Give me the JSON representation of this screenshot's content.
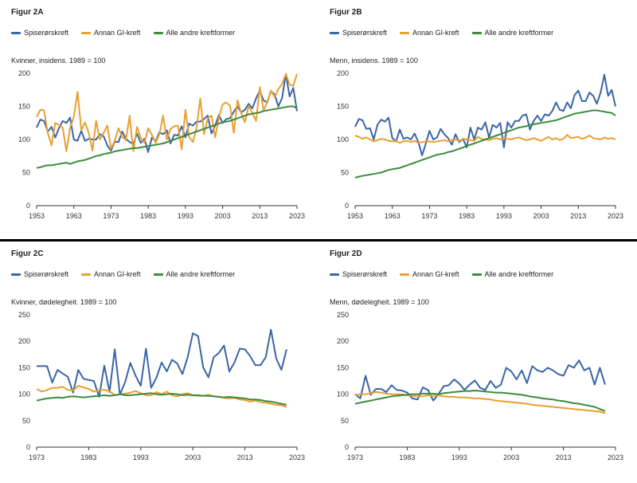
{
  "colors": {
    "spise": "#3a65a6",
    "annen": "#e8a030",
    "alle": "#3d8b3d"
  },
  "chart_data": [
    {
      "type": "line",
      "title": "Figur 2A",
      "subtitle": "Kvinner, insidens. 1989 = 100",
      "xlim": [
        1953,
        2023
      ],
      "ylim": [
        0,
        200
      ],
      "xticks": [
        1953,
        1963,
        1973,
        1983,
        1993,
        2003,
        2013,
        2023
      ],
      "yticks": [
        0,
        50,
        100,
        150,
        200
      ],
      "x_start": 1953,
      "series": [
        {
          "name": "Spiserørskreft",
          "key": "spise",
          "values": [
            118,
            130,
            128,
            112,
            119,
            103,
            117,
            128,
            125,
            133,
            100,
            98,
            113,
            98,
            101,
            100,
            100,
            108,
            105,
            91,
            83,
            97,
            96,
            112,
            101,
            96,
            93,
            109,
            95,
            101,
            81,
            103,
            97,
            111,
            108,
            114,
            94,
            107,
            106,
            120,
            103,
            124,
            121,
            127,
            127,
            131,
            136,
            109,
            121,
            137,
            125,
            131,
            132,
            142,
            150,
            141,
            145,
            154,
            147,
            162,
            174,
            159,
            156,
            173,
            168,
            150,
            163,
            199,
            165,
            178,
            143
          ]
        },
        {
          "name": "Annan GI-kreft",
          "key": "annen",
          "values": [
            134,
            145,
            144,
            110,
            91,
            125,
            122,
            118,
            82,
            118,
            134,
            172,
            114,
            126,
            110,
            83,
            128,
            100,
            110,
            121,
            86,
            98,
            117,
            104,
            99,
            136,
            82,
            119,
            103,
            95,
            117,
            107,
            95,
            108,
            136,
            100,
            116,
            120,
            121,
            85,
            145,
            104,
            96,
            118,
            162,
            108,
            132,
            136,
            103,
            133,
            153,
            156,
            151,
            110,
            159,
            140,
            126,
            151,
            140,
            128,
            179,
            144,
            157,
            174,
            164,
            176,
            184,
            199,
            183,
            181,
            199
          ]
        },
        {
          "name": "Alle andre kreftformer",
          "key": "alle",
          "values": [
            57,
            58,
            60,
            61,
            61,
            62,
            63,
            64,
            65,
            63,
            65,
            67,
            68,
            69,
            71,
            73,
            75,
            76,
            78,
            79,
            80,
            82,
            83,
            84,
            85,
            86,
            87,
            87,
            88,
            89,
            90,
            91,
            92,
            93,
            94,
            96,
            98,
            100,
            102,
            104,
            106,
            108,
            110,
            112,
            114,
            116,
            118,
            120,
            122,
            124,
            126,
            127,
            128,
            130,
            132,
            134,
            136,
            138,
            139,
            140,
            141,
            143,
            144,
            145,
            146,
            147,
            148,
            149,
            150,
            150,
            147
          ]
        }
      ]
    },
    {
      "type": "line",
      "title": "Figur 2B",
      "subtitle": "Menn, insidens. 1989 = 100",
      "xlim": [
        1953,
        2023
      ],
      "ylim": [
        0,
        200
      ],
      "xticks": [
        1953,
        1963,
        1973,
        1983,
        1993,
        2003,
        2013,
        2023
      ],
      "yticks": [
        0,
        50,
        100,
        150,
        200
      ],
      "x_start": 1953,
      "series": [
        {
          "name": "Spiserørskreft",
          "key": "spise",
          "values": [
            119,
            131,
            129,
            116,
            117,
            100,
            122,
            130,
            127,
            133,
            102,
            97,
            115,
            101,
            103,
            100,
            109,
            96,
            76,
            94,
            113,
            100,
            103,
            116,
            108,
            102,
            92,
            108,
            96,
            101,
            88,
            118,
            100,
            118,
            115,
            126,
            103,
            122,
            118,
            125,
            88,
            126,
            118,
            128,
            128,
            136,
            138,
            115,
            128,
            136,
            128,
            138,
            136,
            143,
            156,
            145,
            143,
            156,
            147,
            167,
            174,
            158,
            158,
            171,
            166,
            154,
            171,
            198,
            166,
            175,
            150
          ]
        },
        {
          "name": "Annan GI-kreft",
          "key": "annen",
          "values": [
            106,
            104,
            101,
            103,
            100,
            97,
            99,
            101,
            100,
            98,
            97,
            98,
            95,
            97,
            98,
            96,
            98,
            95,
            96,
            97,
            97,
            96,
            97,
            98,
            99,
            97,
            99,
            100,
            98,
            101,
            100,
            99,
            98,
            104,
            101,
            100,
            99,
            101,
            102,
            100,
            103,
            101,
            100,
            102,
            103,
            101,
            99,
            100,
            102,
            100,
            98,
            101,
            104,
            100,
            102,
            99,
            101,
            107,
            102,
            103,
            104,
            101,
            103,
            106,
            102,
            101,
            100,
            103,
            101,
            102,
            100
          ]
        },
        {
          "name": "Alle andre kreftformer",
          "key": "alle",
          "values": [
            42,
            44,
            45,
            46,
            47,
            48,
            49,
            50,
            52,
            54,
            55,
            56,
            57,
            59,
            61,
            63,
            65,
            67,
            69,
            71,
            73,
            75,
            77,
            78,
            79,
            81,
            82,
            84,
            86,
            88,
            90,
            92,
            94,
            96,
            98,
            100,
            102,
            104,
            106,
            108,
            110,
            112,
            114,
            116,
            118,
            119,
            120,
            122,
            123,
            124,
            125,
            126,
            127,
            128,
            129,
            131,
            133,
            135,
            137,
            139,
            140,
            141,
            142,
            143,
            144,
            144,
            143,
            142,
            141,
            140,
            136
          ]
        }
      ]
    },
    {
      "type": "line",
      "title": "Figur 2C",
      "subtitle": "Kvinner, dødelegheit. 1989 = 100",
      "xlim": [
        1973,
        2023
      ],
      "ylim": [
        0,
        250
      ],
      "xticks": [
        1973,
        1983,
        1993,
        2003,
        2013,
        2023
      ],
      "yticks": [
        0,
        50,
        100,
        150,
        200,
        250
      ],
      "x_start": 1973,
      "series": [
        {
          "name": "Spiserørskreft",
          "key": "spise",
          "values": [
            153,
            153,
            153,
            122,
            146,
            139,
            133,
            103,
            146,
            129,
            127,
            125,
            95,
            154,
            104,
            185,
            99,
            123,
            159,
            135,
            116,
            186,
            112,
            131,
            160,
            143,
            165,
            158,
            138,
            170,
            215,
            210,
            150,
            132,
            170,
            178,
            192,
            143,
            160,
            186,
            185,
            172,
            155,
            155,
            170,
            222,
            168,
            146,
            185
          ]
        },
        {
          "name": "Annan GI-kreft",
          "key": "annen",
          "values": [
            110,
            105,
            108,
            112,
            112,
            114,
            108,
            107,
            116,
            113,
            110,
            105,
            108,
            108,
            106,
            98,
            100,
            101,
            103,
            106,
            102,
            98,
            98,
            104,
            100,
            105,
            98,
            96,
            100,
            102,
            98,
            97,
            97,
            99,
            96,
            95,
            93,
            92,
            93,
            90,
            89,
            86,
            88,
            85,
            84,
            82,
            80,
            79,
            76
          ]
        },
        {
          "name": "Alle andre kreftformer",
          "key": "alle",
          "values": [
            88,
            90,
            92,
            93,
            94,
            93,
            95,
            96,
            95,
            94,
            95,
            96,
            97,
            98,
            97,
            98,
            100,
            98,
            98,
            99,
            100,
            101,
            102,
            100,
            99,
            100,
            101,
            100,
            98,
            99,
            98,
            98,
            97,
            97,
            96,
            95,
            94,
            95,
            94,
            93,
            92,
            90,
            90,
            89,
            87,
            86,
            84,
            82,
            80
          ]
        }
      ]
    },
    {
      "type": "line",
      "title": "Figur 2D",
      "subtitle": "Menn, dødelegheit. 1989 = 100",
      "xlim": [
        1973,
        2023
      ],
      "ylim": [
        0,
        250
      ],
      "xticks": [
        1973,
        1983,
        1993,
        2003,
        2013,
        2023
      ],
      "yticks": [
        0,
        50,
        100,
        150,
        200,
        250
      ],
      "x_start": 1973,
      "series": [
        {
          "name": "Spiserørskreft",
          "key": "spise",
          "values": [
            100,
            92,
            135,
            99,
            110,
            110,
            104,
            117,
            108,
            107,
            103,
            92,
            90,
            113,
            108,
            88,
            100,
            115,
            117,
            128,
            120,
            108,
            118,
            126,
            112,
            108,
            125,
            112,
            118,
            150,
            143,
            128,
            145,
            121,
            153,
            145,
            142,
            150,
            145,
            138,
            135,
            155,
            150,
            164,
            145,
            150,
            118,
            150,
            118
          ]
        },
        {
          "name": "Annan GI-kreft",
          "key": "annen",
          "values": [
            98,
            100,
            100,
            102,
            104,
            103,
            101,
            100,
            100,
            100,
            98,
            97,
            96,
            96,
            98,
            97,
            98,
            96,
            95,
            95,
            94,
            94,
            93,
            92,
            92,
            91,
            90,
            88,
            87,
            86,
            85,
            84,
            83,
            82,
            80,
            79,
            78,
            77,
            76,
            75,
            74,
            73,
            72,
            71,
            70,
            69,
            68,
            67,
            64
          ]
        },
        {
          "name": "Alle andre kreftformer",
          "key": "alle",
          "values": [
            82,
            84,
            86,
            88,
            90,
            92,
            94,
            96,
            97,
            98,
            99,
            100,
            100,
            101,
            101,
            101,
            100,
            102,
            103,
            104,
            105,
            106,
            106,
            107,
            106,
            105,
            104,
            103,
            103,
            102,
            101,
            100,
            99,
            97,
            95,
            94,
            92,
            91,
            90,
            88,
            87,
            85,
            83,
            82,
            80,
            78,
            76,
            72,
            68
          ]
        }
      ]
    }
  ]
}
